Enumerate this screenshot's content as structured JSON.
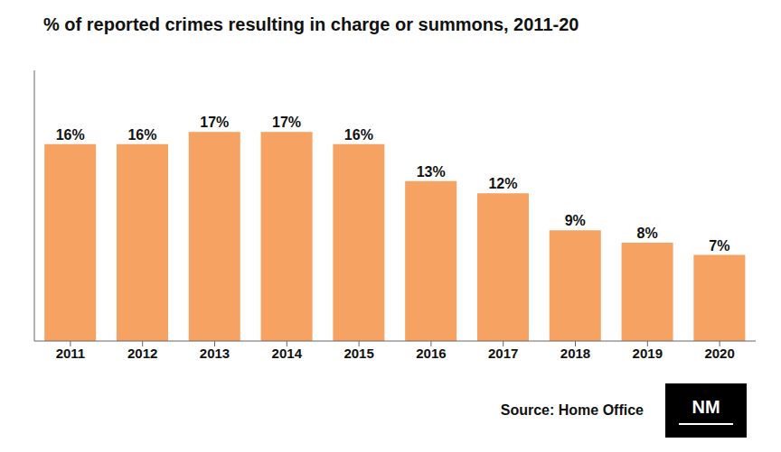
{
  "chart_data": {
    "type": "bar",
    "title": "% of reported crimes resulting in charge or summons, 2011-20",
    "categories": [
      "2011",
      "2012",
      "2013",
      "2014",
      "2015",
      "2016",
      "2017",
      "2018",
      "2019",
      "2020"
    ],
    "values": [
      16,
      16,
      17,
      17,
      16,
      13,
      12,
      9,
      8,
      7
    ],
    "value_labels": [
      "16%",
      "16%",
      "17%",
      "17%",
      "16%",
      "13%",
      "12%",
      "9%",
      "8%",
      "7%"
    ],
    "data_labels": true,
    "color": "#F5A263",
    "ylim": [
      0,
      22
    ],
    "yticks": [],
    "tick_labels": "x",
    "grid": false,
    "annotations": [
      "Source: Home Office",
      "NM"
    ]
  }
}
